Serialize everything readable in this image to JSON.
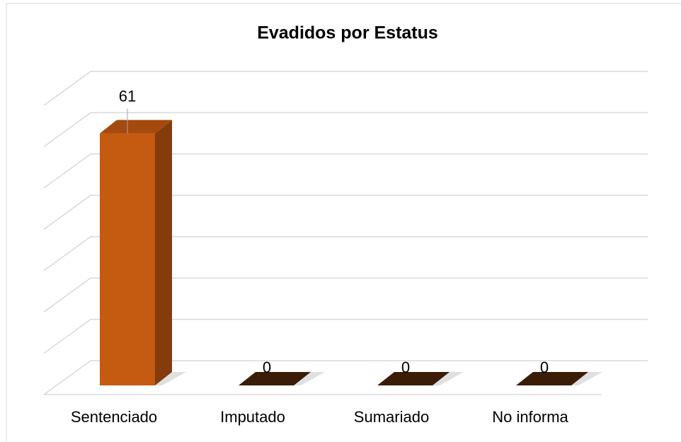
{
  "chart_data": {
    "type": "bar3d",
    "title": "Evadidos por Estatus",
    "categories": [
      "Sentenciado",
      "Imputado",
      "Sumariado",
      "No informa"
    ],
    "values": [
      61,
      0,
      0,
      0
    ],
    "color": "#c55a11",
    "ylim": [
      0,
      70
    ],
    "yticks": [
      0,
      10,
      20,
      30,
      40,
      50,
      60,
      70
    ],
    "grid": true
  }
}
